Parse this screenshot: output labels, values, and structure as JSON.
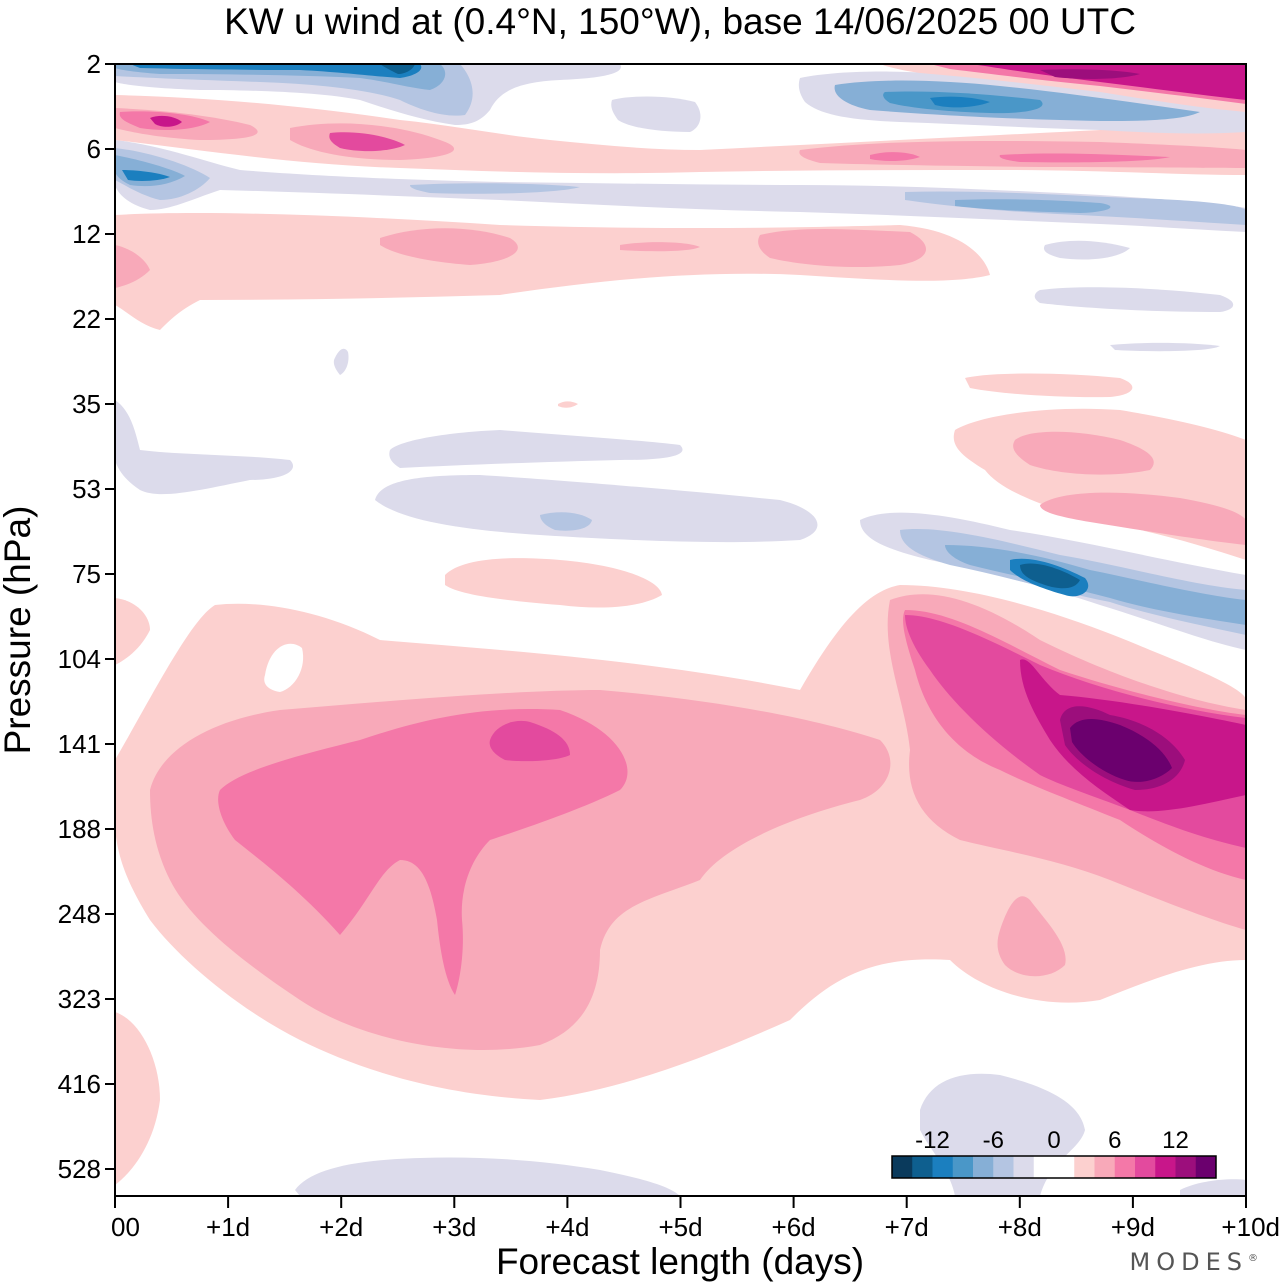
{
  "chart_data": {
    "type": "heatmap",
    "title": "KW u wind at (0.4°N, 150°W),  base 14/06/2025  00 UTC",
    "xlabel": "Forecast length (days)",
    "ylabel": "Pressure (hPa)",
    "x_ticks": [
      "00",
      "+1d",
      "+2d",
      "+3d",
      "+4d",
      "+5d",
      "+6d",
      "+7d",
      "+8d",
      "+9d",
      "+10d"
    ],
    "y_ticks": [
      "2",
      "6",
      "12",
      "22",
      "35",
      "53",
      "75",
      "104",
      "141",
      "188",
      "248",
      "323",
      "416",
      "528"
    ],
    "xlim": [
      0,
      10
    ],
    "ylim": [
      2,
      600
    ],
    "colorbar": {
      "tick_labels": [
        "-12",
        "-6",
        "0",
        "6",
        "12"
      ],
      "colors": [
        "#0a3a5c",
        "#0e5f8f",
        "#1b7fbf",
        "#4a97c8",
        "#86afd6",
        "#b4c5e2",
        "#dcdbeb",
        "#ffffff",
        "#ffffff",
        "#fcd0cf",
        "#f8a9b9",
        "#f478a8",
        "#e34a9e",
        "#c8168a",
        "#9c0e7c",
        "#6b006e"
      ]
    },
    "regions": [
      {
        "name": "upper-easterly-2hPa",
        "sign": "negative",
        "peak": -11,
        "x": [
          0.0,
          3.2
        ],
        "pressure_hPa": [
          2,
          3
        ]
      },
      {
        "name": "upper-westerly-2hPa",
        "sign": "positive",
        "peak": 11,
        "x": [
          7.0,
          10.0
        ],
        "pressure_hPa": [
          2,
          3
        ]
      },
      {
        "name": "westerly-4-6hPa",
        "sign": "positive",
        "peak": 10,
        "x": [
          0.0,
          10.0
        ],
        "pressure_hPa": [
          4,
          7
        ]
      },
      {
        "name": "easterly-8hPa",
        "sign": "negative",
        "peak": -8,
        "x": [
          0.0,
          10.0
        ],
        "pressure_hPa": [
          7,
          10
        ]
      },
      {
        "name": "westerly-12-18hPa",
        "sign": "positive",
        "peak": 4,
        "x": [
          0.0,
          7.8
        ],
        "pressure_hPa": [
          11,
          22
        ]
      },
      {
        "name": "easterly-50-75hPa",
        "sign": "negative",
        "peak": -12,
        "x": [
          7.0,
          10.0
        ],
        "pressure_hPa": [
          60,
          100
        ]
      },
      {
        "name": "westerly-upper-trop",
        "sign": "positive",
        "peak": 16,
        "x": [
          0.0,
          10.0
        ],
        "pressure_hPa": [
          100,
          450
        ]
      },
      {
        "name": "easterly-near-surface",
        "sign": "negative",
        "peak": -2,
        "x": [
          1.6,
          10.0
        ],
        "pressure_hPa": [
          400,
          600
        ]
      }
    ]
  },
  "brand": "MODES",
  "brand_mark": "®"
}
